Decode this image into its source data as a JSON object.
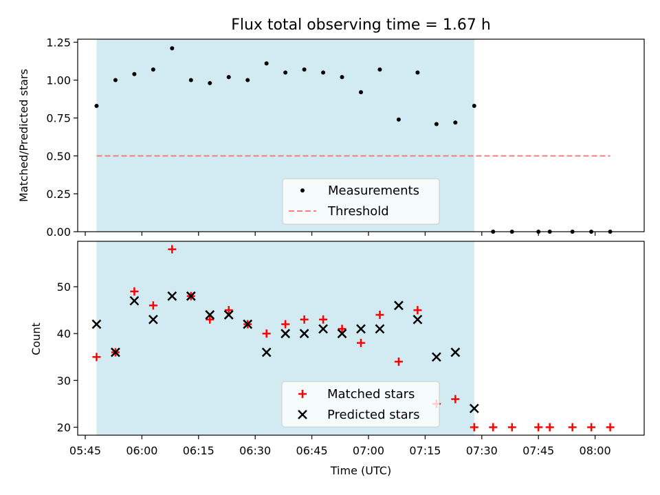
{
  "chart_data": [
    {
      "type": "scatter",
      "title": "Flux total observing time = 1.67 h",
      "xlabel": "",
      "ylabel": "Matched/Predicted stars",
      "ylim": [
        0,
        1.27
      ],
      "yticks": [
        "0.00",
        "0.25",
        "0.50",
        "0.75",
        "1.00",
        "1.25"
      ],
      "shaded_span": {
        "start": "05:48",
        "end": "07:28",
        "color": "#add8e6"
      },
      "series": [
        {
          "name": "Measurements",
          "marker": "dot",
          "color": "#000000",
          "x": [
            "05:48",
            "05:53",
            "05:58",
            "06:03",
            "06:08",
            "06:13",
            "06:18",
            "06:23",
            "06:28",
            "06:33",
            "06:38",
            "06:43",
            "06:48",
            "06:53",
            "06:58",
            "07:03",
            "07:08",
            "07:13",
            "07:18",
            "07:23",
            "07:28",
            "07:33",
            "07:38",
            "07:45",
            "07:48",
            "07:54",
            "07:59",
            "08:04"
          ],
          "y": [
            0.83,
            1.0,
            1.04,
            1.07,
            1.21,
            1.0,
            0.98,
            1.02,
            1.0,
            1.11,
            1.05,
            1.07,
            1.05,
            1.02,
            0.92,
            1.07,
            0.74,
            1.05,
            0.71,
            0.72,
            0.83,
            0,
            0,
            0,
            0,
            0,
            0,
            0
          ]
        },
        {
          "name": "Threshold",
          "style": "dashed",
          "color": "#f08080",
          "x": [
            "05:48",
            "08:04"
          ],
          "y": [
            0.5,
            0.5
          ]
        }
      ],
      "legend_position": "lower center"
    },
    {
      "type": "scatter",
      "xlabel": "Time (UTC)",
      "ylabel": "Count",
      "ylim": [
        18.3,
        59.7
      ],
      "yticks": [
        "20",
        "30",
        "40",
        "50"
      ],
      "xlim": [
        "05:43",
        "08:13"
      ],
      "xticks": [
        "05:45",
        "06:00",
        "06:15",
        "06:30",
        "06:45",
        "07:00",
        "07:15",
        "07:30",
        "07:45",
        "08:00"
      ],
      "shaded_span": {
        "start": "05:48",
        "end": "07:28",
        "color": "#add8e6"
      },
      "series": [
        {
          "name": "Matched stars",
          "marker": "plus",
          "color": "#ff0000",
          "x": [
            "05:48",
            "05:53",
            "05:58",
            "06:03",
            "06:08",
            "06:13",
            "06:18",
            "06:23",
            "06:28",
            "06:33",
            "06:38",
            "06:43",
            "06:48",
            "06:53",
            "06:58",
            "07:03",
            "07:08",
            "07:13",
            "07:18",
            "07:23",
            "07:28",
            "07:33",
            "07:38",
            "07:45",
            "07:48",
            "07:54",
            "07:59",
            "08:04"
          ],
          "y": [
            35,
            36,
            49,
            46,
            58,
            48,
            43,
            45,
            42,
            40,
            42,
            43,
            43,
            41,
            38,
            44,
            34,
            45,
            25,
            26,
            20,
            20,
            20,
            20,
            20,
            20,
            20,
            20
          ]
        },
        {
          "name": "Predicted stars",
          "marker": "x",
          "color": "#000000",
          "x": [
            "05:48",
            "05:53",
            "05:58",
            "06:03",
            "06:08",
            "06:13",
            "06:18",
            "06:23",
            "06:28",
            "06:33",
            "06:38",
            "06:43",
            "06:48",
            "06:53",
            "06:58",
            "07:03",
            "07:08",
            "07:13",
            "07:18",
            "07:23",
            "07:28"
          ],
          "y": [
            42,
            36,
            47,
            43,
            48,
            48,
            44,
            44,
            42,
            36,
            40,
            40,
            41,
            40,
            41,
            41,
            46,
            43,
            35,
            36,
            24
          ]
        }
      ],
      "legend_position": "lower center"
    }
  ]
}
